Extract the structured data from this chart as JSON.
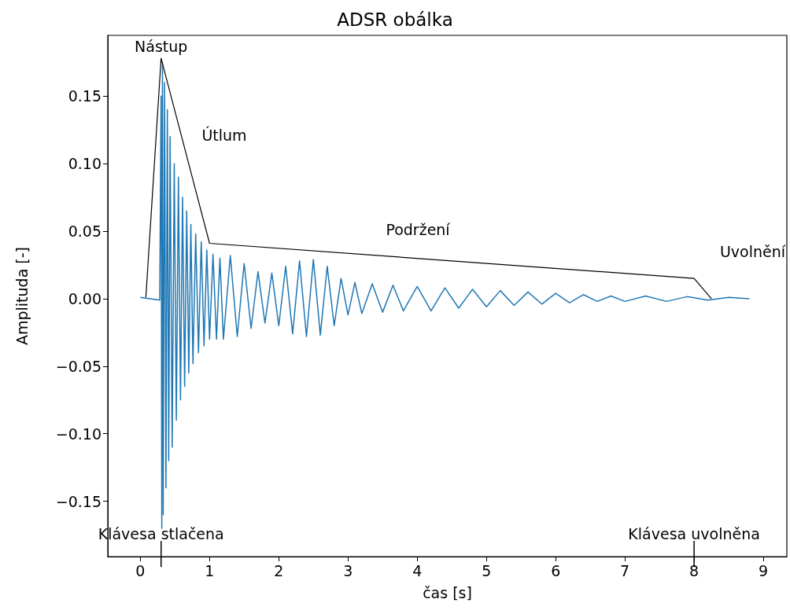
{
  "chart_data": {
    "type": "line",
    "title": "ADSR obálka",
    "xlabel": "čas [s]",
    "ylabel": "Amplituda [-]",
    "xlim": [
      -0.47,
      9.34
    ],
    "xticks": [
      0,
      1,
      2,
      3,
      4,
      5,
      6,
      7,
      8,
      9
    ],
    "ylim": [
      -0.191,
      0.195
    ],
    "yticks": [
      {
        "value": -0.15,
        "label": "−0.15"
      },
      {
        "value": -0.1,
        "label": "−0.10"
      },
      {
        "value": -0.05,
        "label": "−0.05"
      },
      {
        "value": 0,
        "label": "0.00"
      },
      {
        "value": 0.05,
        "label": "0.05"
      },
      {
        "value": 0.1,
        "label": "0.10"
      },
      {
        "value": 0.15,
        "label": "0.15"
      }
    ],
    "grid": false,
    "marker": "none",
    "line_style": "solid",
    "series": [
      {
        "color": "#1f77b4",
        "x": [
          0,
          0.28,
          0.3,
          0.31,
          0.32,
          0.33,
          0.35,
          0.37,
          0.39,
          0.41,
          0.43,
          0.46,
          0.49,
          0.52,
          0.55,
          0.58,
          0.61,
          0.64,
          0.67,
          0.7,
          0.73,
          0.76,
          0.8,
          0.84,
          0.88,
          0.92,
          0.96,
          1.0,
          1.05,
          1.1,
          1.15,
          1.2,
          1.3,
          1.4,
          1.5,
          1.6,
          1.7,
          1.8,
          1.9,
          2.0,
          2.1,
          2.2,
          2.3,
          2.4,
          2.5,
          2.6,
          2.7,
          2.8,
          2.9,
          3.0,
          3.1,
          3.2,
          3.35,
          3.5,
          3.65,
          3.8,
          4.0,
          4.2,
          4.4,
          4.6,
          4.8,
          5.0,
          5.2,
          5.4,
          5.6,
          5.8,
          6.0,
          6.2,
          6.4,
          6.6,
          6.8,
          7.0,
          7.3,
          7.6,
          7.9,
          8.2,
          8.5,
          8.8
        ],
        "values": [
          0.001,
          -0.001,
          0.15,
          -0.17,
          0.175,
          -0.16,
          0.16,
          -0.14,
          0.14,
          -0.12,
          0.12,
          -0.11,
          0.1,
          -0.09,
          0.09,
          -0.075,
          0.075,
          -0.065,
          0.065,
          -0.055,
          0.055,
          -0.048,
          0.048,
          -0.04,
          0.042,
          -0.035,
          0.036,
          -0.03,
          0.033,
          -0.03,
          0.03,
          -0.03,
          0.032,
          -0.028,
          0.026,
          -0.022,
          0.02,
          -0.018,
          0.019,
          -0.02,
          0.024,
          -0.026,
          0.028,
          -0.028,
          0.029,
          -0.027,
          0.024,
          -0.02,
          0.015,
          -0.012,
          0.012,
          -0.011,
          0.011,
          -0.01,
          0.01,
          -0.009,
          0.009,
          -0.009,
          0.008,
          -0.007,
          0.007,
          -0.006,
          0.006,
          -0.005,
          0.005,
          -0.004,
          0.004,
          -0.003,
          0.003,
          -0.002,
          0.002,
          -0.002,
          0.002,
          -0.002,
          0.0015,
          -0.001,
          0.001,
          0
        ]
      },
      {
        "color": "#000000",
        "x": [
          0.08,
          0.3,
          1.0,
          8.0,
          8.25
        ],
        "values": [
          0.001,
          0.178,
          0.041,
          0.015,
          0.0
        ]
      }
    ],
    "ref_lines": [
      {
        "axis": "x",
        "value": 0.3,
        "label": "Klávesa stlačena",
        "color": "#000000"
      },
      {
        "axis": "x",
        "value": 8.0,
        "label": "Klávesa uvolněna",
        "color": "#000000"
      }
    ],
    "annotations": [
      {
        "text": "Nástup",
        "x": 0.3,
        "y": 0.178
      },
      "Útlum",
      "Podržení",
      "Uvolnění"
    ]
  }
}
